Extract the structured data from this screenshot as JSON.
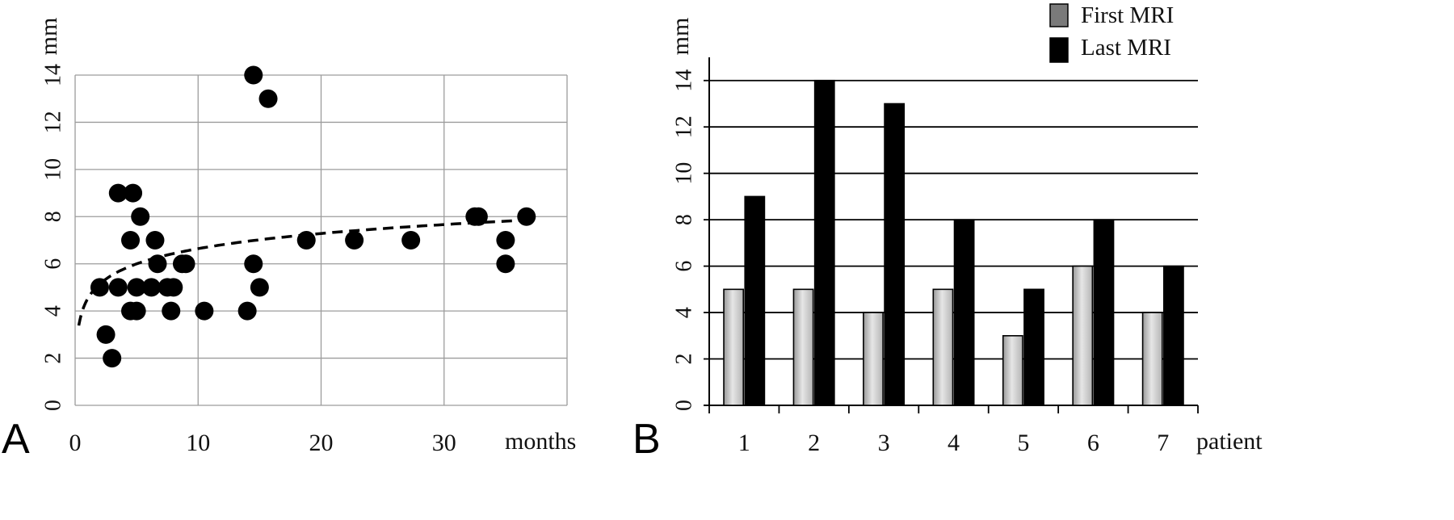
{
  "panels": [
    {
      "letter": "A",
      "chart_data": {
        "type": "scatter",
        "xlabel": "months",
        "ylabel": "mm",
        "xlim": [
          0,
          40
        ],
        "ylim": [
          0,
          14
        ],
        "xticks": [
          0,
          10,
          20,
          30
        ],
        "yticks": [
          0,
          2,
          4,
          6,
          8,
          10,
          12,
          14
        ],
        "grid": true,
        "points": [
          {
            "x": 2,
            "y": 5
          },
          {
            "x": 2.5,
            "y": 3
          },
          {
            "x": 3,
            "y": 2
          },
          {
            "x": 3.5,
            "y": 9
          },
          {
            "x": 3.5,
            "y": 5
          },
          {
            "x": 4.5,
            "y": 7
          },
          {
            "x": 4.5,
            "y": 4
          },
          {
            "x": 4.7,
            "y": 9
          },
          {
            "x": 5,
            "y": 4
          },
          {
            "x": 5,
            "y": 5
          },
          {
            "x": 5.3,
            "y": 8
          },
          {
            "x": 6.2,
            "y": 5
          },
          {
            "x": 6.5,
            "y": 7
          },
          {
            "x": 6.7,
            "y": 6
          },
          {
            "x": 7.5,
            "y": 5
          },
          {
            "x": 7.8,
            "y": 4
          },
          {
            "x": 8,
            "y": 5
          },
          {
            "x": 8.7,
            "y": 6
          },
          {
            "x": 9,
            "y": 6
          },
          {
            "x": 10.5,
            "y": 4
          },
          {
            "x": 14,
            "y": 4
          },
          {
            "x": 14.5,
            "y": 14
          },
          {
            "x": 14.5,
            "y": 6
          },
          {
            "x": 15,
            "y": 5
          },
          {
            "x": 15.7,
            "y": 13
          },
          {
            "x": 18.8,
            "y": 7
          },
          {
            "x": 22.7,
            "y": 7
          },
          {
            "x": 27.3,
            "y": 7
          },
          {
            "x": 32.5,
            "y": 8
          },
          {
            "x": 32.8,
            "y": 8
          },
          {
            "x": 35,
            "y": 7
          },
          {
            "x": 35,
            "y": 6
          },
          {
            "x": 36.7,
            "y": 8
          }
        ],
        "trendline": {
          "style": "dashed",
          "model": "logarithmic",
          "a": 4.5,
          "b": 0.93,
          "x_range": [
            0.3,
            36.5
          ]
        }
      }
    },
    {
      "letter": "B",
      "chart_data": {
        "type": "bar",
        "xlabel": "patient",
        "ylabel": "mm",
        "ylim": [
          0,
          15
        ],
        "yticks": [
          0,
          2,
          4,
          6,
          8,
          10,
          12,
          14
        ],
        "grid": true,
        "legend_position": "top-right",
        "categories": [
          "1",
          "2",
          "3",
          "4",
          "5",
          "6",
          "7"
        ],
        "series": [
          {
            "name": "First MRI",
            "values": [
              5,
              5,
              4,
              5,
              3,
              6,
              4
            ],
            "color": "#c4c4c4"
          },
          {
            "name": "Last MRI",
            "values": [
              9,
              14,
              13,
              8,
              5,
              8,
              6
            ],
            "color": "#000000"
          }
        ]
      }
    }
  ]
}
